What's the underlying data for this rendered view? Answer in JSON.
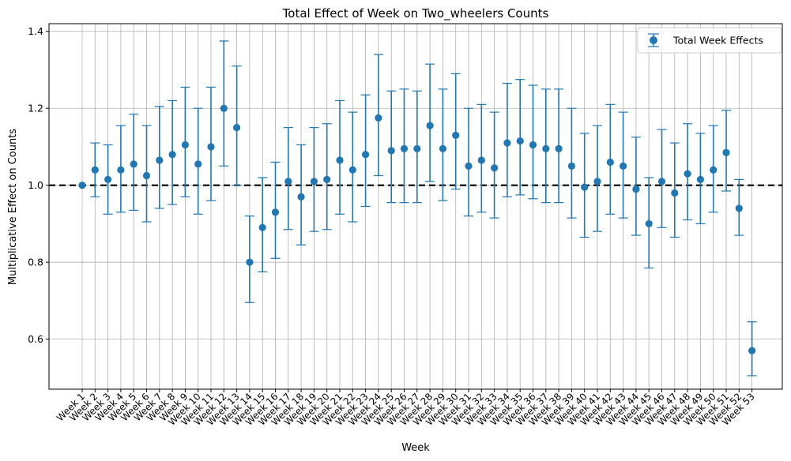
{
  "chart_data": {
    "type": "scatter",
    "title": "Total Effect of Week on Two_wheelers Counts",
    "xlabel": "Week",
    "ylabel": "Multiplicative Effect on Counts",
    "ylim": [
      0.47,
      1.42
    ],
    "yticks": [
      0.6,
      0.8,
      1.0,
      1.2,
      1.4
    ],
    "ytick_labels": [
      "0.6",
      "0.8",
      "1.0",
      "1.2",
      "1.4"
    ],
    "grid": true,
    "legend": {
      "position": "top-right",
      "label": "Total Week Effects"
    },
    "reference_line": {
      "y": 1.0,
      "style": "dashed",
      "color": "#000000"
    },
    "colors": {
      "series": "#1f77b4",
      "grid": "#b0b0b0"
    },
    "categories": [
      "Week 1",
      "Week 2",
      "Week 3",
      "Week 4",
      "Week 5",
      "Week 6",
      "Week 7",
      "Week 8",
      "Week 9",
      "Week 10",
      "Week 11",
      "Week 12",
      "Week 13",
      "Week 14",
      "Week 15",
      "Week 16",
      "Week 17",
      "Week 18",
      "Week 19",
      "Week 20",
      "Week 21",
      "Week 22",
      "Week 23",
      "Week 24",
      "Week 25",
      "Week 26",
      "Week 27",
      "Week 28",
      "Week 29",
      "Week 30",
      "Week 31",
      "Week 32",
      "Week 33",
      "Week 34",
      "Week 35",
      "Week 36",
      "Week 37",
      "Week 38",
      "Week 39",
      "Week 40",
      "Week 41",
      "Week 42",
      "Week 43",
      "Week 44",
      "Week 45",
      "Week 46",
      "Week 47",
      "Week 48",
      "Week 49",
      "Week 50",
      "Week 51",
      "Week 52",
      "Week 53"
    ],
    "series": [
      {
        "name": "Total Week Effects",
        "values": [
          1.0,
          1.04,
          1.015,
          1.04,
          1.055,
          1.025,
          1.065,
          1.08,
          1.105,
          1.055,
          1.1,
          1.2,
          1.15,
          0.8,
          0.89,
          0.93,
          1.01,
          0.97,
          1.01,
          1.015,
          1.065,
          1.04,
          1.08,
          1.175,
          1.09,
          1.095,
          1.095,
          1.155,
          1.095,
          1.13,
          1.05,
          1.065,
          1.045,
          1.11,
          1.115,
          1.105,
          1.095,
          1.095,
          1.05,
          0.995,
          1.01,
          1.06,
          1.05,
          0.99,
          0.9,
          1.01,
          0.98,
          1.03,
          1.015,
          1.04,
          1.085,
          0.94,
          0.57
        ],
        "lower": [
          null,
          0.97,
          0.925,
          0.93,
          0.935,
          0.905,
          0.94,
          0.95,
          0.97,
          0.925,
          0.96,
          1.05,
          1.0,
          0.695,
          0.775,
          0.81,
          0.885,
          0.845,
          0.88,
          0.885,
          0.925,
          0.905,
          0.945,
          1.025,
          0.955,
          0.955,
          0.955,
          1.01,
          0.96,
          0.99,
          0.92,
          0.93,
          0.915,
          0.97,
          0.975,
          0.965,
          0.955,
          0.955,
          0.915,
          0.865,
          0.88,
          0.925,
          0.915,
          0.87,
          0.785,
          0.89,
          0.865,
          0.91,
          0.9,
          0.93,
          0.985,
          0.87,
          0.505
        ],
        "upper": [
          null,
          1.11,
          1.105,
          1.155,
          1.185,
          1.155,
          1.205,
          1.22,
          1.255,
          1.2,
          1.255,
          1.375,
          1.31,
          0.92,
          1.02,
          1.06,
          1.15,
          1.105,
          1.15,
          1.16,
          1.22,
          1.19,
          1.235,
          1.34,
          1.245,
          1.25,
          1.245,
          1.315,
          1.25,
          1.29,
          1.2,
          1.21,
          1.19,
          1.265,
          1.275,
          1.26,
          1.25,
          1.25,
          1.2,
          1.135,
          1.155,
          1.21,
          1.19,
          1.125,
          1.02,
          1.145,
          1.11,
          1.16,
          1.135,
          1.155,
          1.195,
          1.015,
          0.645
        ]
      }
    ]
  }
}
